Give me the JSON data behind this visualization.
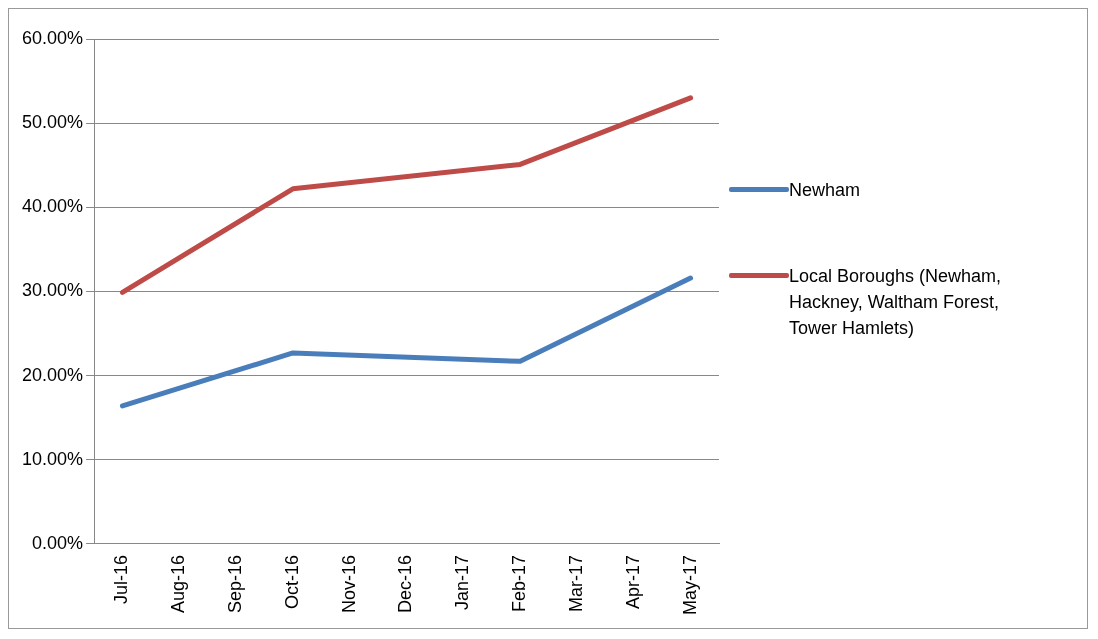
{
  "chart_data": {
    "type": "line",
    "categories": [
      "Jul-16",
      "Aug-16",
      "Sep-16",
      "Oct-16",
      "Nov-16",
      "Dec-16",
      "Jan-17",
      "Feb-17",
      "Mar-17",
      "Apr-17",
      "May-17"
    ],
    "series": [
      {
        "name": "Newham",
        "color": "#4a7ebb",
        "values": [
          16.4,
          null,
          null,
          22.7,
          null,
          null,
          null,
          21.7,
          null,
          null,
          31.6
        ]
      },
      {
        "name": "Local Boroughs (Newham, Hackney, Waltham Forest, Tower Hamlets)",
        "color": "#be4b48",
        "values": [
          29.9,
          null,
          null,
          42.2,
          null,
          null,
          null,
          45.1,
          null,
          null,
          53.0
        ]
      }
    ],
    "ylim": [
      0,
      60
    ],
    "yticks": [
      {
        "value": 0,
        "label": "0.00%"
      },
      {
        "value": 10,
        "label": "10.00%"
      },
      {
        "value": 20,
        "label": "20.00%"
      },
      {
        "value": 30,
        "label": "30.00%"
      },
      {
        "value": 40,
        "label": "40.00%"
      },
      {
        "value": 50,
        "label": "50.00%"
      },
      {
        "value": 60,
        "label": "60.00%"
      }
    ],
    "grid": "y",
    "legend": "right",
    "marker": "none",
    "line_style": "solid"
  }
}
